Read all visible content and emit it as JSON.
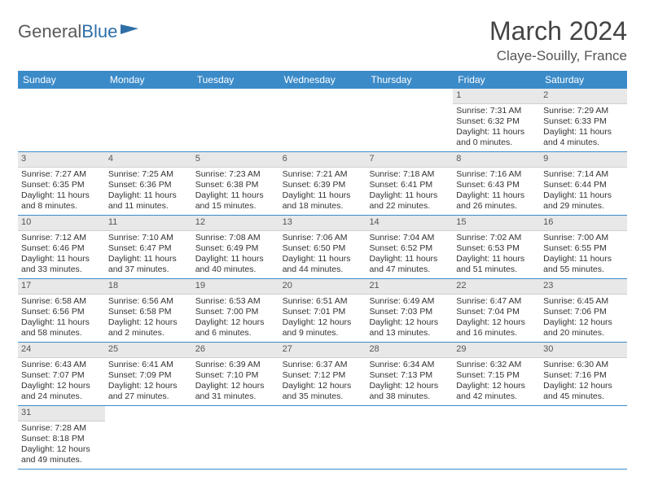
{
  "logo": {
    "text1": "General",
    "text2": "Blue"
  },
  "title": "March 2024",
  "location": "Claye-Souilly, France",
  "dayNames": [
    "Sunday",
    "Monday",
    "Tuesday",
    "Wednesday",
    "Thursday",
    "Friday",
    "Saturday"
  ],
  "colors": {
    "headerBg": "#3b8bc9",
    "dayNumBg": "#e8e8e8",
    "border": "#3b8bc9"
  },
  "weeks": [
    [
      null,
      null,
      null,
      null,
      null,
      {
        "n": "1",
        "sr": "Sunrise: 7:31 AM",
        "ss": "Sunset: 6:32 PM",
        "d1": "Daylight: 11 hours",
        "d2": "and 0 minutes."
      },
      {
        "n": "2",
        "sr": "Sunrise: 7:29 AM",
        "ss": "Sunset: 6:33 PM",
        "d1": "Daylight: 11 hours",
        "d2": "and 4 minutes."
      }
    ],
    [
      {
        "n": "3",
        "sr": "Sunrise: 7:27 AM",
        "ss": "Sunset: 6:35 PM",
        "d1": "Daylight: 11 hours",
        "d2": "and 8 minutes."
      },
      {
        "n": "4",
        "sr": "Sunrise: 7:25 AM",
        "ss": "Sunset: 6:36 PM",
        "d1": "Daylight: 11 hours",
        "d2": "and 11 minutes."
      },
      {
        "n": "5",
        "sr": "Sunrise: 7:23 AM",
        "ss": "Sunset: 6:38 PM",
        "d1": "Daylight: 11 hours",
        "d2": "and 15 minutes."
      },
      {
        "n": "6",
        "sr": "Sunrise: 7:21 AM",
        "ss": "Sunset: 6:39 PM",
        "d1": "Daylight: 11 hours",
        "d2": "and 18 minutes."
      },
      {
        "n": "7",
        "sr": "Sunrise: 7:18 AM",
        "ss": "Sunset: 6:41 PM",
        "d1": "Daylight: 11 hours",
        "d2": "and 22 minutes."
      },
      {
        "n": "8",
        "sr": "Sunrise: 7:16 AM",
        "ss": "Sunset: 6:43 PM",
        "d1": "Daylight: 11 hours",
        "d2": "and 26 minutes."
      },
      {
        "n": "9",
        "sr": "Sunrise: 7:14 AM",
        "ss": "Sunset: 6:44 PM",
        "d1": "Daylight: 11 hours",
        "d2": "and 29 minutes."
      }
    ],
    [
      {
        "n": "10",
        "sr": "Sunrise: 7:12 AM",
        "ss": "Sunset: 6:46 PM",
        "d1": "Daylight: 11 hours",
        "d2": "and 33 minutes."
      },
      {
        "n": "11",
        "sr": "Sunrise: 7:10 AM",
        "ss": "Sunset: 6:47 PM",
        "d1": "Daylight: 11 hours",
        "d2": "and 37 minutes."
      },
      {
        "n": "12",
        "sr": "Sunrise: 7:08 AM",
        "ss": "Sunset: 6:49 PM",
        "d1": "Daylight: 11 hours",
        "d2": "and 40 minutes."
      },
      {
        "n": "13",
        "sr": "Sunrise: 7:06 AM",
        "ss": "Sunset: 6:50 PM",
        "d1": "Daylight: 11 hours",
        "d2": "and 44 minutes."
      },
      {
        "n": "14",
        "sr": "Sunrise: 7:04 AM",
        "ss": "Sunset: 6:52 PM",
        "d1": "Daylight: 11 hours",
        "d2": "and 47 minutes."
      },
      {
        "n": "15",
        "sr": "Sunrise: 7:02 AM",
        "ss": "Sunset: 6:53 PM",
        "d1": "Daylight: 11 hours",
        "d2": "and 51 minutes."
      },
      {
        "n": "16",
        "sr": "Sunrise: 7:00 AM",
        "ss": "Sunset: 6:55 PM",
        "d1": "Daylight: 11 hours",
        "d2": "and 55 minutes."
      }
    ],
    [
      {
        "n": "17",
        "sr": "Sunrise: 6:58 AM",
        "ss": "Sunset: 6:56 PM",
        "d1": "Daylight: 11 hours",
        "d2": "and 58 minutes."
      },
      {
        "n": "18",
        "sr": "Sunrise: 6:56 AM",
        "ss": "Sunset: 6:58 PM",
        "d1": "Daylight: 12 hours",
        "d2": "and 2 minutes."
      },
      {
        "n": "19",
        "sr": "Sunrise: 6:53 AM",
        "ss": "Sunset: 7:00 PM",
        "d1": "Daylight: 12 hours",
        "d2": "and 6 minutes."
      },
      {
        "n": "20",
        "sr": "Sunrise: 6:51 AM",
        "ss": "Sunset: 7:01 PM",
        "d1": "Daylight: 12 hours",
        "d2": "and 9 minutes."
      },
      {
        "n": "21",
        "sr": "Sunrise: 6:49 AM",
        "ss": "Sunset: 7:03 PM",
        "d1": "Daylight: 12 hours",
        "d2": "and 13 minutes."
      },
      {
        "n": "22",
        "sr": "Sunrise: 6:47 AM",
        "ss": "Sunset: 7:04 PM",
        "d1": "Daylight: 12 hours",
        "d2": "and 16 minutes."
      },
      {
        "n": "23",
        "sr": "Sunrise: 6:45 AM",
        "ss": "Sunset: 7:06 PM",
        "d1": "Daylight: 12 hours",
        "d2": "and 20 minutes."
      }
    ],
    [
      {
        "n": "24",
        "sr": "Sunrise: 6:43 AM",
        "ss": "Sunset: 7:07 PM",
        "d1": "Daylight: 12 hours",
        "d2": "and 24 minutes."
      },
      {
        "n": "25",
        "sr": "Sunrise: 6:41 AM",
        "ss": "Sunset: 7:09 PM",
        "d1": "Daylight: 12 hours",
        "d2": "and 27 minutes."
      },
      {
        "n": "26",
        "sr": "Sunrise: 6:39 AM",
        "ss": "Sunset: 7:10 PM",
        "d1": "Daylight: 12 hours",
        "d2": "and 31 minutes."
      },
      {
        "n": "27",
        "sr": "Sunrise: 6:37 AM",
        "ss": "Sunset: 7:12 PM",
        "d1": "Daylight: 12 hours",
        "d2": "and 35 minutes."
      },
      {
        "n": "28",
        "sr": "Sunrise: 6:34 AM",
        "ss": "Sunset: 7:13 PM",
        "d1": "Daylight: 12 hours",
        "d2": "and 38 minutes."
      },
      {
        "n": "29",
        "sr": "Sunrise: 6:32 AM",
        "ss": "Sunset: 7:15 PM",
        "d1": "Daylight: 12 hours",
        "d2": "and 42 minutes."
      },
      {
        "n": "30",
        "sr": "Sunrise: 6:30 AM",
        "ss": "Sunset: 7:16 PM",
        "d1": "Daylight: 12 hours",
        "d2": "and 45 minutes."
      }
    ],
    [
      {
        "n": "31",
        "sr": "Sunrise: 7:28 AM",
        "ss": "Sunset: 8:18 PM",
        "d1": "Daylight: 12 hours",
        "d2": "and 49 minutes."
      },
      null,
      null,
      null,
      null,
      null,
      null
    ]
  ]
}
